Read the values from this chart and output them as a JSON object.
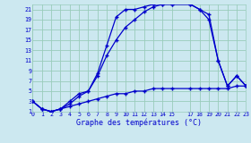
{
  "xlabel": "Graphe des températures (°C)",
  "bg_color": "#cce8f0",
  "grid_color": "#99ccbb",
  "line_color": "#0000cc",
  "xmin": 0,
  "xmax": 23,
  "ymin": 1,
  "ymax": 22,
  "yticks": [
    1,
    3,
    5,
    7,
    9,
    11,
    13,
    15,
    17,
    19,
    21
  ],
  "xticks": [
    0,
    1,
    2,
    3,
    4,
    5,
    6,
    7,
    8,
    9,
    10,
    11,
    12,
    13,
    14,
    15,
    17,
    18,
    19,
    20,
    21,
    22,
    23
  ],
  "line1_x": [
    0,
    1,
    2,
    3,
    4,
    5,
    6,
    7,
    8,
    9,
    10,
    11,
    12,
    13,
    14,
    15,
    17,
    18,
    19,
    20,
    21,
    22,
    23
  ],
  "line1_y": [
    3,
    1.5,
    1,
    1.5,
    3,
    4.5,
    5,
    8.5,
    14,
    19.5,
    21,
    21,
    21.5,
    22,
    22,
    22,
    22,
    21,
    20,
    11,
    6,
    8,
    6
  ],
  "line2_x": [
    0,
    1,
    2,
    3,
    4,
    5,
    6,
    7,
    8,
    9,
    10,
    11,
    12,
    13,
    14,
    15,
    17,
    18,
    19,
    20,
    21,
    22,
    23
  ],
  "line2_y": [
    3,
    1.5,
    1,
    1.5,
    2.5,
    4,
    5,
    8,
    12,
    15,
    17.5,
    19,
    20.5,
    21.5,
    22,
    22,
    22,
    21,
    19,
    11,
    6,
    8,
    6
  ],
  "line3_x": [
    0,
    1,
    2,
    3,
    4,
    5,
    6,
    7,
    8,
    9,
    10,
    11,
    12,
    13,
    14,
    15,
    17,
    18,
    19,
    20,
    21,
    22,
    23
  ],
  "line3_y": [
    3,
    1.5,
    1,
    1.5,
    2,
    2.5,
    3,
    3.5,
    4,
    4.5,
    4.5,
    5,
    5,
    5.5,
    5.5,
    5.5,
    5.5,
    5.5,
    5.5,
    5.5,
    5.5,
    6,
    6
  ]
}
